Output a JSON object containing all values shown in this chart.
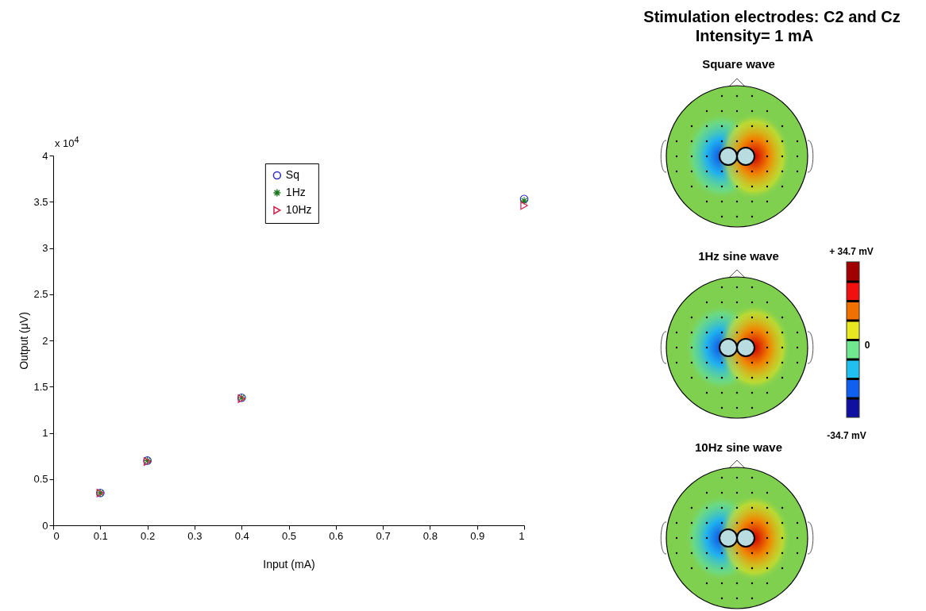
{
  "chart_data": [
    {
      "type": "scatter",
      "xlabel": "Input (mA)",
      "ylabel": "Output (μV)",
      "x": [
        0.1,
        0.2,
        0.4,
        1
      ],
      "series": [
        {
          "name": "Sq",
          "color": "#2b2bc0",
          "marker": "circle",
          "values": [
            0.35,
            0.7,
            1.38,
            3.53
          ]
        },
        {
          "name": "1Hz",
          "color": "#1e7a1e",
          "marker": "cross",
          "values": [
            0.35,
            0.7,
            1.38,
            3.51
          ]
        },
        {
          "name": "10Hz",
          "color": "#d0204a",
          "marker": "triangle",
          "values": [
            0.35,
            0.69,
            1.37,
            3.46
          ]
        }
      ],
      "xlim": [
        0,
        1
      ],
      "xticks": [
        0,
        0.1,
        0.2,
        0.3,
        0.4,
        0.5,
        0.6,
        0.7,
        0.8,
        0.9,
        1
      ],
      "ylim": [
        0,
        4
      ],
      "yticks": [
        0,
        0.5,
        1,
        1.5,
        2,
        2.5,
        3,
        3.5,
        4
      ],
      "grid": false,
      "legend": "top",
      "annotations": [
        "x 10$^{4}$"
      ]
    },
    {
      "type": "other",
      "title": "Stimulation electrodes: C2 and Cz",
      "subtitle": "Intensity= 1 mA",
      "annotations": [
        "Square wave",
        "1Hz sine wave",
        "10Hz sine wave",
        "+ 34.7 mV",
        "0",
        "-34.7 mV"
      ]
    }
  ]
}
